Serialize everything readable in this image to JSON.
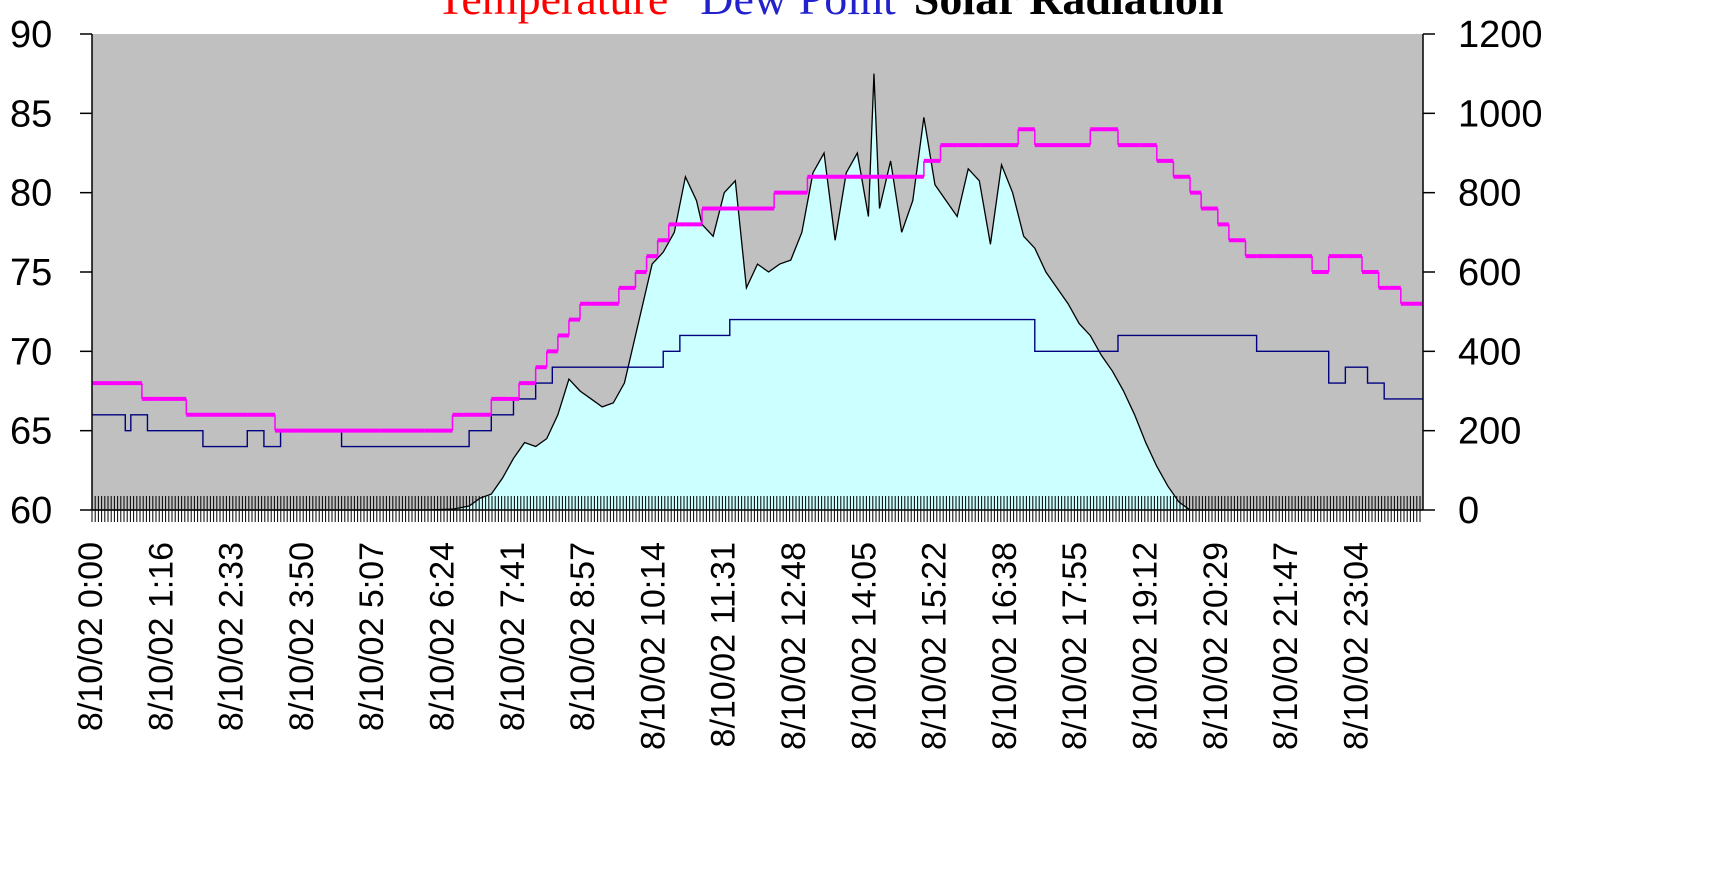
{
  "chart_data": {
    "type": "line",
    "title_parts": [
      {
        "text": "Temperature",
        "color": "#ff0000",
        "weight": "normal"
      },
      {
        "text": "Dew Point",
        "color": "#2222cc",
        "weight": "normal"
      },
      {
        "text": "Solar Radiation",
        "color": "#000000",
        "weight": "bold"
      }
    ],
    "plot_background": "#c0c0c0",
    "area_fill": "#ccffff",
    "x_tick_labels": [
      "8/10/02 0:00",
      "8/10/02 1:16",
      "8/10/02 2:33",
      "8/10/02 3:50",
      "8/10/02 5:07",
      "8/10/02 6:24",
      "8/10/02 7:41",
      "8/10/02 8:57",
      "8/10/02 10:14",
      "8/10/02 11:31",
      "8/10/02 12:48",
      "8/10/02 14:05",
      "8/10/02 15:22",
      "8/10/02 16:38",
      "8/10/02 17:55",
      "8/10/02 19:12",
      "8/10/02 20:29",
      "8/10/02 21:47",
      "8/10/02 23:04"
    ],
    "x_range_hours": [
      0,
      24
    ],
    "y_left": {
      "min": 60,
      "max": 90,
      "ticks": [
        60,
        65,
        70,
        75,
        80,
        85,
        90
      ]
    },
    "y_right": {
      "min": 0,
      "max": 1200,
      "ticks": [
        0,
        200,
        400,
        600,
        800,
        1000,
        1200
      ]
    },
    "series": [
      {
        "name": "Temperature",
        "color": "#ff00ff",
        "axis": "left",
        "step": true,
        "x_hours": [
          0.0,
          0.45,
          0.9,
          1.2,
          1.7,
          2.2,
          2.8,
          3.3,
          3.8,
          4.5,
          5.2,
          6.0,
          6.5,
          6.7,
          7.2,
          7.5,
          7.7,
          8.0,
          8.2,
          8.4,
          8.6,
          8.8,
          9.0,
          9.5,
          9.8,
          10.0,
          10.2,
          10.4,
          10.7,
          11.0,
          11.3,
          11.8,
          12.3,
          12.9,
          13.3,
          14.0,
          14.7,
          15.0,
          15.3,
          15.6,
          16.0,
          16.3,
          16.7,
          17.0,
          17.5,
          18.0,
          18.5,
          18.9,
          19.2,
          19.5,
          19.8,
          20.0,
          20.3,
          20.5,
          20.8,
          21.0,
          21.3,
          21.6,
          22.0,
          22.3,
          22.6,
          22.9,
          23.2,
          23.4,
          23.6
        ],
        "values": [
          68,
          68,
          67,
          67,
          66,
          66,
          66,
          65,
          65,
          65,
          65,
          65,
          66,
          66,
          67,
          67,
          68,
          69,
          70,
          71,
          72,
          73,
          73,
          74,
          75,
          76,
          77,
          78,
          78,
          79,
          79,
          79,
          80,
          81,
          81,
          81,
          81,
          82,
          83,
          83,
          83,
          83,
          84,
          83,
          83,
          84,
          83,
          83,
          82,
          81,
          80,
          79,
          78,
          77,
          76,
          76,
          76,
          76,
          75,
          76,
          76,
          75,
          74,
          74,
          73
        ]
      },
      {
        "name": "Dew Point",
        "color": "#000080",
        "axis": "left",
        "step": true,
        "x_hours": [
          0.0,
          0.5,
          0.6,
          0.7,
          1.0,
          1.5,
          2.0,
          2.3,
          2.8,
          3.1,
          3.4,
          4.5,
          5.5,
          6.4,
          6.8,
          7.2,
          7.6,
          8.0,
          8.3,
          8.6,
          9.0,
          9.5,
          10.0,
          10.3,
          10.6,
          11.0,
          11.5,
          12.0,
          12.5,
          13.0,
          13.5,
          14.0,
          14.5,
          15.0,
          15.5,
          16.0,
          16.5,
          17.0,
          17.5,
          18.0,
          18.5,
          19.0,
          19.5,
          20.0,
          20.5,
          21.0,
          21.5,
          22.0,
          22.3,
          22.6,
          23.0,
          23.3,
          23.6
        ],
        "values": [
          66,
          66,
          65,
          66,
          65,
          65,
          64,
          64,
          65,
          64,
          65,
          64,
          64,
          64,
          65,
          66,
          67,
          68,
          69,
          69,
          69,
          69,
          69,
          70,
          71,
          71,
          72,
          72,
          72,
          72,
          72,
          72,
          72,
          72,
          72,
          72,
          72,
          70,
          70,
          70,
          71,
          71,
          71,
          71,
          71,
          70,
          70,
          70,
          68,
          69,
          68,
          67,
          67
        ]
      },
      {
        "name": "Solar Radiation",
        "color": "#000000",
        "axis": "right",
        "fill": true,
        "x_hours": [
          0.0,
          1.0,
          2.0,
          3.0,
          4.0,
          5.0,
          6.0,
          6.5,
          6.8,
          7.0,
          7.2,
          7.4,
          7.6,
          7.8,
          8.0,
          8.2,
          8.4,
          8.6,
          8.8,
          9.0,
          9.2,
          9.4,
          9.6,
          9.8,
          10.0,
          10.1,
          10.3,
          10.5,
          10.7,
          10.9,
          11.0,
          11.2,
          11.4,
          11.6,
          11.8,
          12.0,
          12.2,
          12.4,
          12.6,
          12.8,
          13.0,
          13.2,
          13.4,
          13.6,
          13.8,
          14.0,
          14.1,
          14.2,
          14.4,
          14.6,
          14.8,
          15.0,
          15.2,
          15.4,
          15.6,
          15.8,
          16.0,
          16.2,
          16.4,
          16.6,
          16.8,
          17.0,
          17.2,
          17.4,
          17.6,
          17.8,
          18.0,
          18.2,
          18.4,
          18.6,
          18.8,
          19.0,
          19.2,
          19.4,
          19.6,
          19.8,
          20.0,
          20.2,
          20.4,
          21.0,
          22.0,
          23.0,
          24.0
        ],
        "values": [
          0,
          0,
          0,
          0,
          0,
          0,
          0,
          2,
          10,
          30,
          40,
          80,
          130,
          170,
          160,
          180,
          240,
          330,
          300,
          280,
          260,
          270,
          320,
          440,
          560,
          620,
          650,
          700,
          840,
          780,
          720,
          690,
          800,
          830,
          560,
          620,
          600,
          620,
          630,
          700,
          850,
          900,
          680,
          850,
          900,
          740,
          1100,
          760,
          880,
          700,
          780,
          990,
          820,
          780,
          740,
          860,
          830,
          670,
          870,
          800,
          690,
          660,
          600,
          560,
          520,
          470,
          440,
          390,
          350,
          300,
          240,
          170,
          110,
          60,
          20,
          0,
          0,
          0,
          0,
          0,
          0,
          0,
          0
        ]
      }
    ]
  }
}
